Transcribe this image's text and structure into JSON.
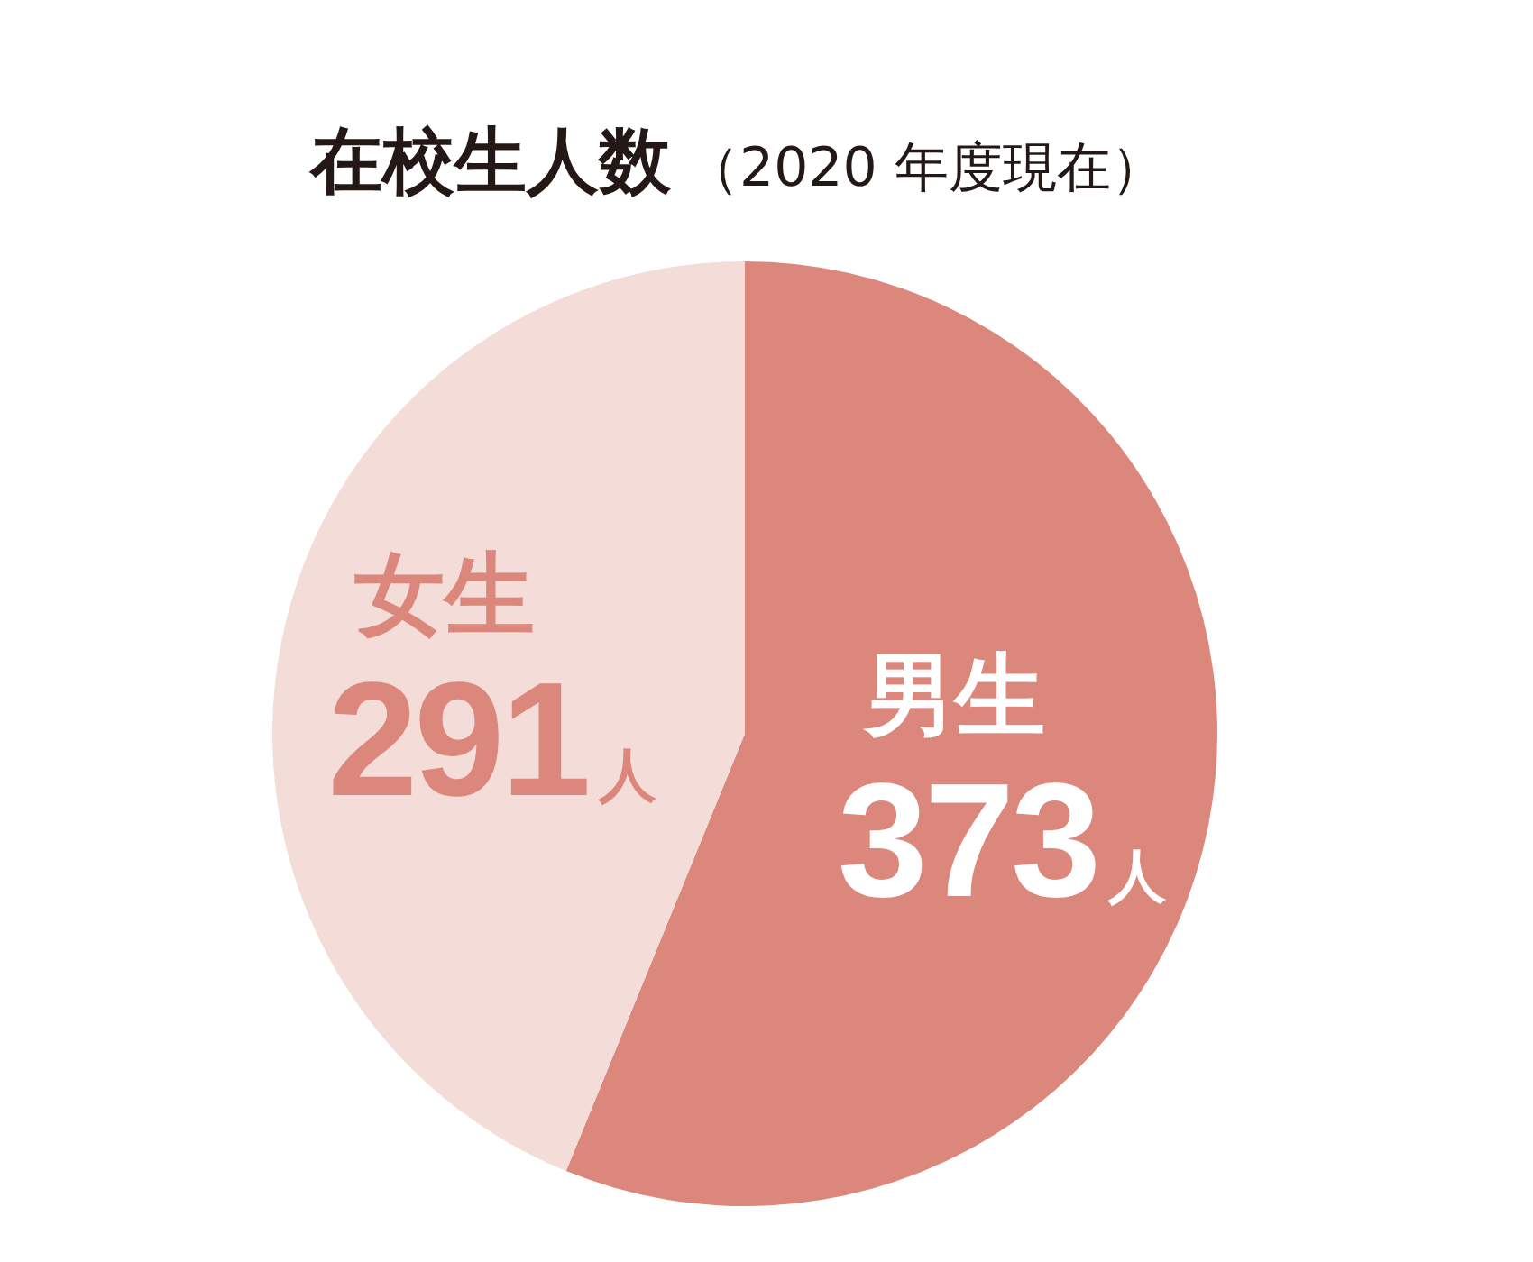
{
  "chart_data": {
    "type": "pie",
    "title": "在校生人数",
    "subtitle": "（2020 年度現在）",
    "categories": [
      "男生",
      "女生"
    ],
    "values": [
      373,
      291
    ],
    "colors": [
      "#db877c",
      "#f4dcd9"
    ],
    "value_labels": [
      "373人",
      "291人"
    ]
  }
}
